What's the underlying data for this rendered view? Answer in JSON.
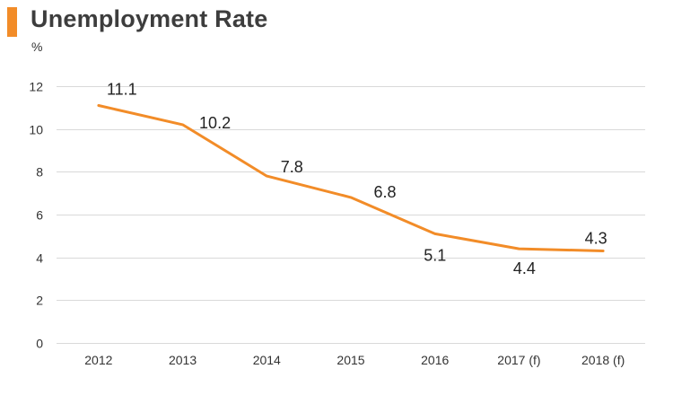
{
  "title": "Unemployment Rate",
  "colors": {
    "accent": "#f28c28",
    "line": "#f28c28",
    "grid": "#d9d9d9"
  },
  "chart_data": {
    "type": "line",
    "title": "Unemployment Rate",
    "ylabel": "%",
    "xlabel": "",
    "categories": [
      "2012",
      "2013",
      "2014",
      "2015",
      "2016",
      "2017 (f)",
      "2018 (f)"
    ],
    "series": [
      {
        "values": [
          11.1,
          10.2,
          7.8,
          6.8,
          5.1,
          4.4,
          4.3
        ],
        "labels": [
          "11.1",
          "10.2",
          "7.8",
          "6.8",
          "5.1",
          "4.4",
          "4.3"
        ]
      }
    ],
    "ylim": [
      0,
      12
    ],
    "yticks": [
      0,
      2,
      4,
      6,
      8,
      10,
      12
    ],
    "ytick_labels": [
      "0",
      "2",
      "4",
      "6",
      "8",
      "10",
      "12"
    ],
    "grid": true,
    "legend": "none"
  }
}
